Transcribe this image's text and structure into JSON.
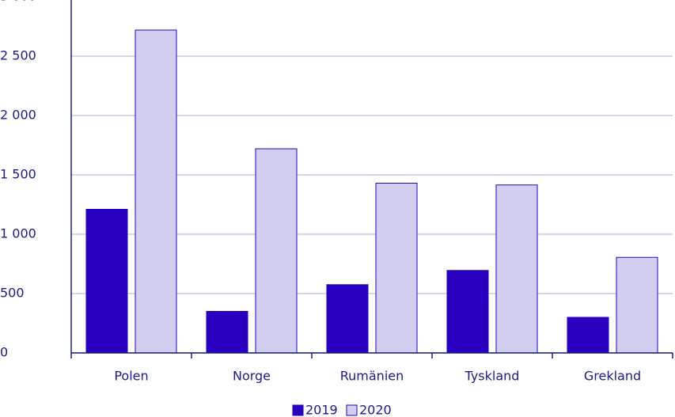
{
  "chart_data": {
    "type": "bar",
    "categories": [
      "Polen",
      "Norge",
      "Rumänien",
      "Tyskland",
      "Grekland"
    ],
    "series": [
      {
        "name": "2019",
        "color": "#2a00c0",
        "values": [
          1210,
          350,
          575,
          695,
          300
        ]
      },
      {
        "name": "2020",
        "color": "#d2cef2",
        "values": [
          2720,
          1720,
          1430,
          1415,
          805
        ]
      }
    ],
    "ylim": [
      0,
      3000
    ],
    "yticks": [
      0,
      500,
      {
        "value": 1000,
        "label": "1 000"
      },
      {
        "value": 1500,
        "label": "1 500"
      },
      {
        "value": 2000,
        "label": "2 000"
      },
      {
        "value": 2500,
        "label": "2 500"
      },
      {
        "value": 3000,
        "label": "3 000"
      }
    ],
    "grid": true
  }
}
